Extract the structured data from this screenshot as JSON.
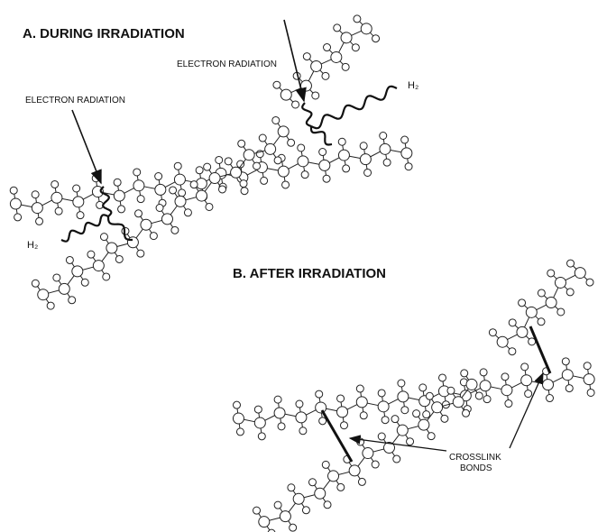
{
  "panels": [
    {
      "title": "A. DURING IRRADIATION",
      "radiation_labels": [
        "ELECTRON RADIATION",
        "ELECTRON RADIATION"
      ],
      "byproduct_labels": [
        "H₂",
        "H₂"
      ]
    },
    {
      "title": "B. AFTER IRRADIATION",
      "crosslink_label": [
        "CROSSLINK",
        "BONDS"
      ]
    }
  ]
}
